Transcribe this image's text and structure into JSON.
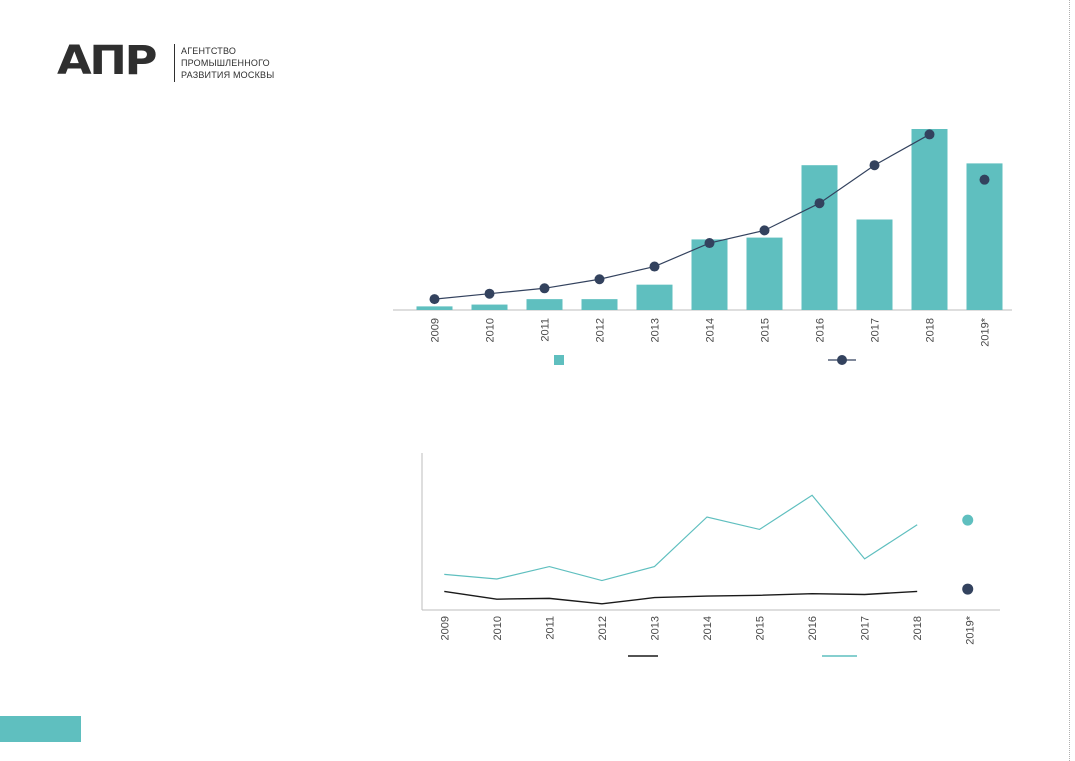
{
  "logo": {
    "mark": "АПР",
    "lines": [
      "АГЕНТСТВО",
      "ПРОМЫШЛЕННОГО",
      "РАЗВИТИЯ МОСКВЫ"
    ]
  },
  "colors": {
    "teal": "#5fbfbf",
    "navy": "#33425e",
    "black": "#1a1a1a",
    "axis": "#bdbdbd"
  },
  "chart_data": [
    {
      "type": "bar",
      "categories": [
        "2009",
        "2010",
        "2011",
        "2012",
        "2013",
        "2014",
        "2015",
        "2016",
        "2017",
        "2018",
        "2019*"
      ],
      "series": [
        {
          "values": [
            2,
            3,
            6,
            6,
            14,
            39,
            40,
            80,
            50,
            100,
            81
          ],
          "color": "#5fbfbf",
          "kind": "bar"
        },
        {
          "values": [
            6,
            9,
            12,
            17,
            24,
            37,
            44,
            59,
            80,
            97,
            72
          ],
          "color": "#33425e",
          "kind": "line-marker"
        }
      ],
      "ylim": [
        0,
        100
      ],
      "legend": "bottom",
      "grid": false
    },
    {
      "type": "line",
      "categories": [
        "2009",
        "2010",
        "2011",
        "2012",
        "2013",
        "2014",
        "2015",
        "2016",
        "2017",
        "2018",
        "2019*"
      ],
      "series": [
        {
          "values": [
            12,
            7,
            7.5,
            4,
            8,
            9,
            9.5,
            10.5,
            10,
            12,
            13.5
          ],
          "color": "#1a1a1a",
          "forecast_marker": true
        },
        {
          "values": [
            23,
            20,
            28,
            19,
            28,
            60,
            52,
            74,
            33,
            55,
            58
          ],
          "color": "#5fbfbf",
          "forecast_marker": true
        }
      ],
      "ylim": [
        0,
        100
      ],
      "legend": "bottom",
      "grid": false
    }
  ]
}
